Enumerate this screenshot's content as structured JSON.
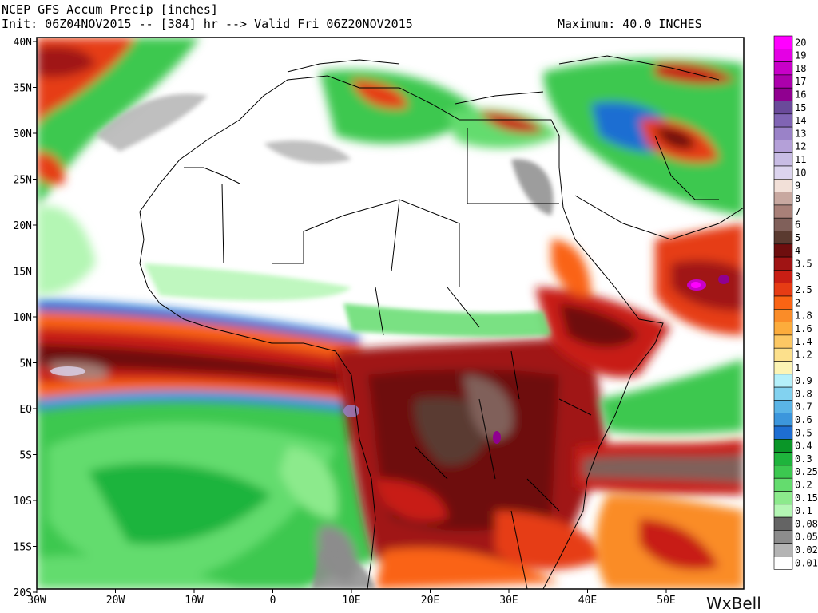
{
  "header": {
    "title": "NCEP GFS Accum Precip [inches]",
    "init_line": "Init: 06Z04NOV2015 -- [384] hr --> Valid Fri 06Z20NOV2015",
    "maximum": "Maximum: 40.0 INCHES"
  },
  "axes": {
    "lat_labels": [
      "40N",
      "35N",
      "30N",
      "25N",
      "20N",
      "15N",
      "10N",
      "5N",
      "EQ",
      "5S",
      "10S",
      "15S",
      "20S"
    ],
    "lon_labels": [
      "30W",
      "20W",
      "10W",
      "0",
      "10E",
      "20E",
      "30E",
      "40E",
      "50E"
    ]
  },
  "legend": {
    "items": [
      {
        "label": "20",
        "color": "#ff00ff"
      },
      {
        "label": "19",
        "color": "#e400e4"
      },
      {
        "label": "18",
        "color": "#c800c8"
      },
      {
        "label": "17",
        "color": "#ac00ac"
      },
      {
        "label": "16",
        "color": "#900090"
      },
      {
        "label": "15",
        "color": "#6a4a9a"
      },
      {
        "label": "14",
        "color": "#8064b4"
      },
      {
        "label": "13",
        "color": "#9a82c8"
      },
      {
        "label": "12",
        "color": "#b4a0d8"
      },
      {
        "label": "11",
        "color": "#c8bce4"
      },
      {
        "label": "10",
        "color": "#dcd4ee"
      },
      {
        "label": "9",
        "color": "#f2e0d8"
      },
      {
        "label": "8",
        "color": "#c8a8a0"
      },
      {
        "label": "7",
        "color": "#a88078"
      },
      {
        "label": "6",
        "color": "#80605a"
      },
      {
        "label": "5",
        "color": "#5a3a30"
      },
      {
        "label": "4",
        "color": "#6e0e0e"
      },
      {
        "label": "3.5",
        "color": "#a01414"
      },
      {
        "label": "3",
        "color": "#c81e14"
      },
      {
        "label": "2.5",
        "color": "#e63c14"
      },
      {
        "label": "2",
        "color": "#fa6414"
      },
      {
        "label": "1.8",
        "color": "#fa8c28"
      },
      {
        "label": "1.6",
        "color": "#fcac3c"
      },
      {
        "label": "1.4",
        "color": "#fcc864"
      },
      {
        "label": "1.2",
        "color": "#fce08c"
      },
      {
        "label": "1",
        "color": "#fcf4b4"
      },
      {
        "label": "0.9",
        "color": "#b4f0fa"
      },
      {
        "label": "0.8",
        "color": "#82d2f0"
      },
      {
        "label": "0.7",
        "color": "#5ab4e6"
      },
      {
        "label": "0.6",
        "color": "#3c96dc"
      },
      {
        "label": "0.5",
        "color": "#1e6ed2"
      },
      {
        "label": "0.4",
        "color": "#0a9628"
      },
      {
        "label": "0.3",
        "color": "#1eb43c"
      },
      {
        "label": "0.25",
        "color": "#3cc850"
      },
      {
        "label": "0.2",
        "color": "#64dc6e"
      },
      {
        "label": "0.15",
        "color": "#8cea8c"
      },
      {
        "label": "0.1",
        "color": "#b4f6b4"
      },
      {
        "label": "0.08",
        "color": "#646464"
      },
      {
        "label": "0.05",
        "color": "#8c8c8c"
      },
      {
        "label": "0.02",
        "color": "#b4b4b4"
      },
      {
        "label": "0.01",
        "color": "#ffffff"
      }
    ]
  },
  "brand": {
    "text": "WxBell"
  }
}
